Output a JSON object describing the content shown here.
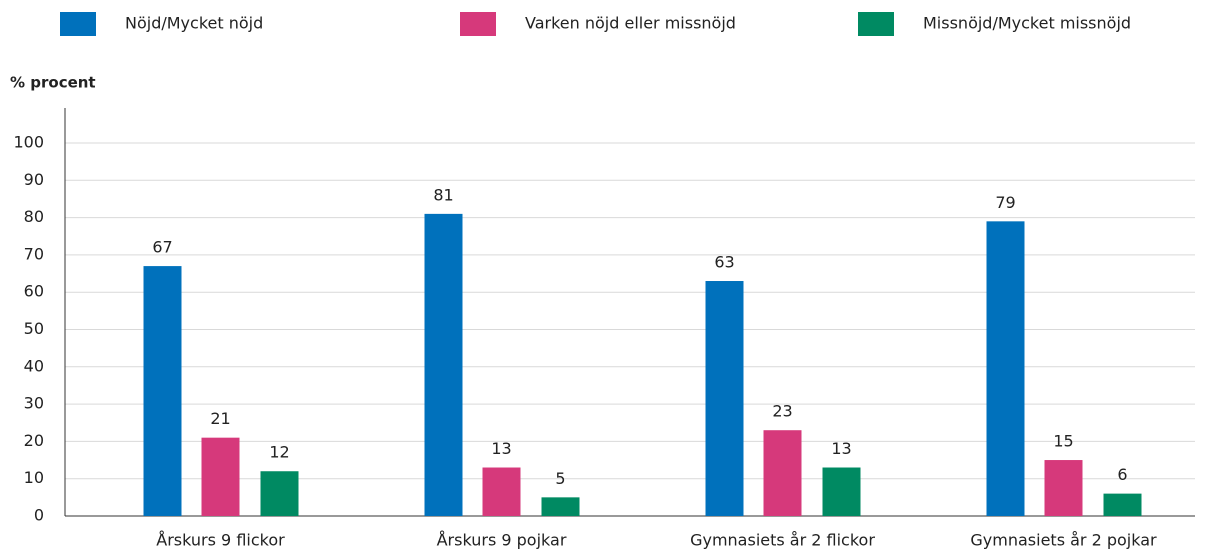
{
  "chart_data": {
    "type": "bar",
    "y_label": "% procent",
    "categories": [
      "Årskurs 9 flickor",
      "Årskurs 9 pojkar",
      "Gymnasiets år 2 flickor",
      "Gymnasiets år 2 pojkar"
    ],
    "series": [
      {
        "name": "Nöjd/Mycket nöjd",
        "color": "#0071bc",
        "values": [
          67,
          81,
          63,
          79
        ]
      },
      {
        "name": "Varken nöjd eller missnöjd",
        "color": "#d6397b",
        "values": [
          21,
          13,
          23,
          15
        ]
      },
      {
        "name": "Missnöjd/Mycket missnöjd",
        "color": "#008a62",
        "values": [
          12,
          5,
          13,
          6
        ]
      }
    ],
    "ylim": [
      0,
      100
    ],
    "yticks": [
      0,
      10,
      20,
      30,
      40,
      50,
      60,
      70,
      80,
      90,
      100
    ],
    "grid": true
  }
}
